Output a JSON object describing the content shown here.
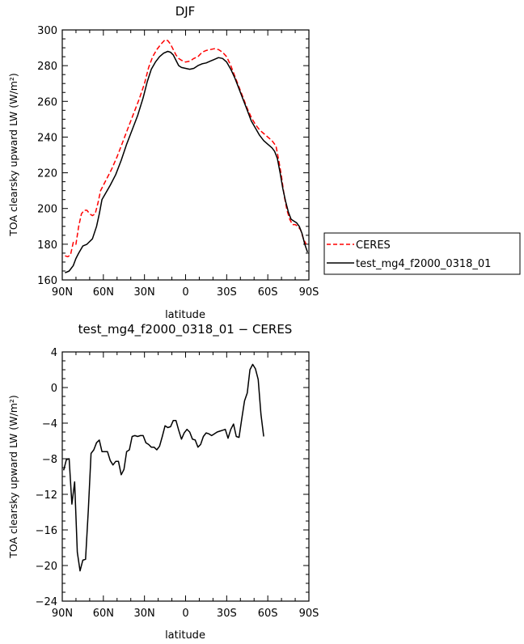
{
  "chart_data": [
    {
      "type": "line",
      "title": "DJF",
      "xlabel": "latitude",
      "ylabel": "TOA clearsky upward LW (W/m²)",
      "xlim": [
        -90,
        90
      ],
      "ylim": [
        160,
        300
      ],
      "x_ticks": [
        -90,
        -60,
        -30,
        0,
        30,
        60,
        90
      ],
      "x_tick_labels": [
        "90N",
        "60N",
        "30N",
        "0",
        "30S",
        "60S",
        "90S"
      ],
      "y_ticks": [
        160,
        180,
        200,
        220,
        240,
        260,
        280,
        300
      ],
      "y_tick_labels": [
        "160",
        "180",
        "200",
        "220",
        "240",
        "260",
        "280",
        "300"
      ],
      "grid": false,
      "legend": "right",
      "series": [
        {
          "name": "CERES",
          "color": "#ff0000",
          "dash": "dashed",
          "points": [
            [
              -88,
              173.5
            ],
            [
              -86,
              173
            ],
            [
              -84,
              174
            ],
            [
              -82,
              181
            ],
            [
              -80,
              180
            ],
            [
              -78,
              190
            ],
            [
              -76,
              197
            ],
            [
              -74,
              199
            ],
            [
              -72,
              199
            ],
            [
              -70,
              197
            ],
            [
              -68,
              196
            ],
            [
              -66,
              197
            ],
            [
              -64,
              203
            ],
            [
              -62,
              210
            ],
            [
              -58,
              216
            ],
            [
              -54,
              222
            ],
            [
              -50,
              229
            ],
            [
              -46,
              237
            ],
            [
              -42,
              245
            ],
            [
              -38,
              253
            ],
            [
              -34,
              261
            ],
            [
              -30,
              270
            ],
            [
              -27,
              279
            ],
            [
              -24,
              285
            ],
            [
              -21,
              289
            ],
            [
              -18,
              292
            ],
            [
              -15,
              294.5
            ],
            [
              -13,
              294
            ],
            [
              -11,
              292
            ],
            [
              -9,
              289
            ],
            [
              -7,
              286
            ],
            [
              -5,
              284
            ],
            [
              -3,
              283
            ],
            [
              0,
              282
            ],
            [
              3,
              282.5
            ],
            [
              6,
              284
            ],
            [
              9,
              285
            ],
            [
              12,
              287.5
            ],
            [
              15,
              288.5
            ],
            [
              18,
              289
            ],
            [
              21,
              289.5
            ],
            [
              24,
              289
            ],
            [
              27,
              287.5
            ],
            [
              30,
              285
            ],
            [
              33,
              280
            ],
            [
              36,
              274
            ],
            [
              39,
              268
            ],
            [
              42,
              262
            ],
            [
              45,
              256
            ],
            [
              48,
              251
            ],
            [
              51,
              247
            ],
            [
              54,
              244
            ],
            [
              57,
              242
            ],
            [
              60,
              240
            ],
            [
              63,
              238
            ],
            [
              66,
              235
            ],
            [
              68,
              227
            ],
            [
              70,
              218
            ],
            [
              72,
              207
            ],
            [
              74,
              199
            ],
            [
              76,
              194
            ],
            [
              78,
              191
            ],
            [
              80,
              191
            ],
            [
              82,
              190
            ],
            [
              84,
              188
            ],
            [
              86,
              183
            ],
            [
              88,
              180
            ]
          ]
        },
        {
          "name": "test_mg4_f2000_0318_01",
          "color": "#000000",
          "dash": "solid",
          "points": [
            [
              -88,
              164
            ],
            [
              -85,
              165
            ],
            [
              -82,
              168
            ],
            [
              -80,
              172
            ],
            [
              -78,
              175
            ],
            [
              -75,
              179
            ],
            [
              -72,
              180
            ],
            [
              -68,
              183
            ],
            [
              -65,
              190
            ],
            [
              -63,
              197
            ],
            [
              -61,
              205
            ],
            [
              -58,
              209
            ],
            [
              -55,
              213
            ],
            [
              -51,
              219
            ],
            [
              -47,
              227
            ],
            [
              -43,
              236
            ],
            [
              -39,
              244
            ],
            [
              -35,
              252
            ],
            [
              -31,
              262
            ],
            [
              -28,
              271
            ],
            [
              -25,
              278
            ],
            [
              -22,
              282
            ],
            [
              -19,
              285
            ],
            [
              -16,
              287
            ],
            [
              -13,
              288
            ],
            [
              -11,
              287.5
            ],
            [
              -9,
              286
            ],
            [
              -7,
              283
            ],
            [
              -5,
              280
            ],
            [
              -3,
              279
            ],
            [
              0,
              278.5
            ],
            [
              3,
              278
            ],
            [
              6,
              278.5
            ],
            [
              9,
              280
            ],
            [
              12,
              281
            ],
            [
              15,
              281.5
            ],
            [
              18,
              282.5
            ],
            [
              21,
              283.5
            ],
            [
              24,
              284.5
            ],
            [
              27,
              284
            ],
            [
              30,
              282
            ],
            [
              33,
              278
            ],
            [
              36,
              273
            ],
            [
              39,
              267
            ],
            [
              42,
              261
            ],
            [
              45,
              255
            ],
            [
              48,
              249
            ],
            [
              51,
              245
            ],
            [
              54,
              241
            ],
            [
              57,
              238
            ],
            [
              60,
              236
            ],
            [
              63,
              234
            ],
            [
              65,
              232
            ],
            [
              67,
              228
            ],
            [
              69,
              220
            ],
            [
              71,
              211
            ],
            [
              73,
              204
            ],
            [
              75,
              198
            ],
            [
              77,
              194
            ],
            [
              79,
              193
            ],
            [
              81,
              192
            ],
            [
              83,
              190
            ],
            [
              85,
              186
            ],
            [
              87,
              180
            ],
            [
              89,
              175.5
            ]
          ]
        }
      ]
    },
    {
      "type": "line",
      "title": "test_mg4_f2000_0318_01 − CERES",
      "xlabel": "latitude",
      "ylabel": "TOA clearsky upward LW (W/m²)",
      "xlim": [
        -90,
        90
      ],
      "ylim": [
        -24,
        4
      ],
      "x_ticks": [
        -90,
        -60,
        -30,
        0,
        30,
        60,
        90
      ],
      "x_tick_labels": [
        "90N",
        "60N",
        "30N",
        "0",
        "30S",
        "60S",
        "90S"
      ],
      "y_ticks": [
        -24,
        -20,
        -16,
        -12,
        -8,
        -4,
        0,
        4
      ],
      "y_tick_labels": [
        "−24",
        "−20",
        "−16",
        "−12",
        "−8",
        "−4",
        "0",
        "4"
      ],
      "grid": false,
      "series": [
        {
          "name": "",
          "color": "#000000",
          "dash": "solid",
          "points": [
            [
              -89,
              -9.3
            ],
            [
              -87,
              -8.1
            ],
            [
              -85,
              -8.0
            ],
            [
              -83,
              -13.1
            ],
            [
              -81,
              -10.6
            ],
            [
              -79,
              -18.5
            ],
            [
              -77,
              -20.6
            ],
            [
              -75,
              -19.4
            ],
            [
              -73,
              -19.3
            ],
            [
              -71,
              -13.8
            ],
            [
              -69,
              -7.4
            ],
            [
              -67,
              -7.0
            ],
            [
              -65,
              -6.2
            ],
            [
              -63,
              -5.9
            ],
            [
              -61,
              -7.2
            ],
            [
              -59,
              -7.2
            ],
            [
              -57,
              -7.2
            ],
            [
              -55,
              -8.2
            ],
            [
              -53,
              -8.7
            ],
            [
              -51,
              -8.3
            ],
            [
              -49,
              -8.3
            ],
            [
              -47,
              -9.8
            ],
            [
              -45,
              -9.2
            ],
            [
              -43,
              -7.2
            ],
            [
              -41,
              -7.0
            ],
            [
              -39,
              -5.5
            ],
            [
              -37,
              -5.4
            ],
            [
              -35,
              -5.5
            ],
            [
              -33,
              -5.4
            ],
            [
              -31,
              -5.4
            ],
            [
              -29,
              -6.2
            ],
            [
              -27,
              -6.4
            ],
            [
              -25,
              -6.7
            ],
            [
              -23,
              -6.7
            ],
            [
              -21,
              -7.0
            ],
            [
              -19,
              -6.6
            ],
            [
              -17,
              -5.5
            ],
            [
              -15,
              -4.3
            ],
            [
              -13,
              -4.5
            ],
            [
              -11,
              -4.4
            ],
            [
              -9,
              -3.7
            ],
            [
              -7,
              -3.7
            ],
            [
              -5,
              -4.8
            ],
            [
              -3,
              -5.8
            ],
            [
              -1,
              -5.1
            ],
            [
              1,
              -4.7
            ],
            [
              3,
              -5.0
            ],
            [
              5,
              -5.8
            ],
            [
              7,
              -5.9
            ],
            [
              9,
              -6.7
            ],
            [
              11,
              -6.4
            ],
            [
              13,
              -5.5
            ],
            [
              15,
              -5.1
            ],
            [
              17,
              -5.2
            ],
            [
              19,
              -5.4
            ],
            [
              21,
              -5.2
            ],
            [
              23,
              -5.0
            ],
            [
              25,
              -4.9
            ],
            [
              27,
              -4.8
            ],
            [
              29,
              -4.7
            ],
            [
              31,
              -5.7
            ],
            [
              33,
              -4.7
            ],
            [
              35,
              -4.1
            ],
            [
              37,
              -5.5
            ],
            [
              39,
              -5.6
            ],
            [
              41,
              -3.5
            ],
            [
              43,
              -1.5
            ],
            [
              45,
              -0.6
            ],
            [
              47,
              2.0
            ],
            [
              49,
              2.6
            ],
            [
              51,
              2.1
            ],
            [
              53,
              0.9
            ],
            [
              55,
              -3.0
            ],
            [
              57,
              -5.5
            ]
          ]
        }
      ]
    }
  ]
}
